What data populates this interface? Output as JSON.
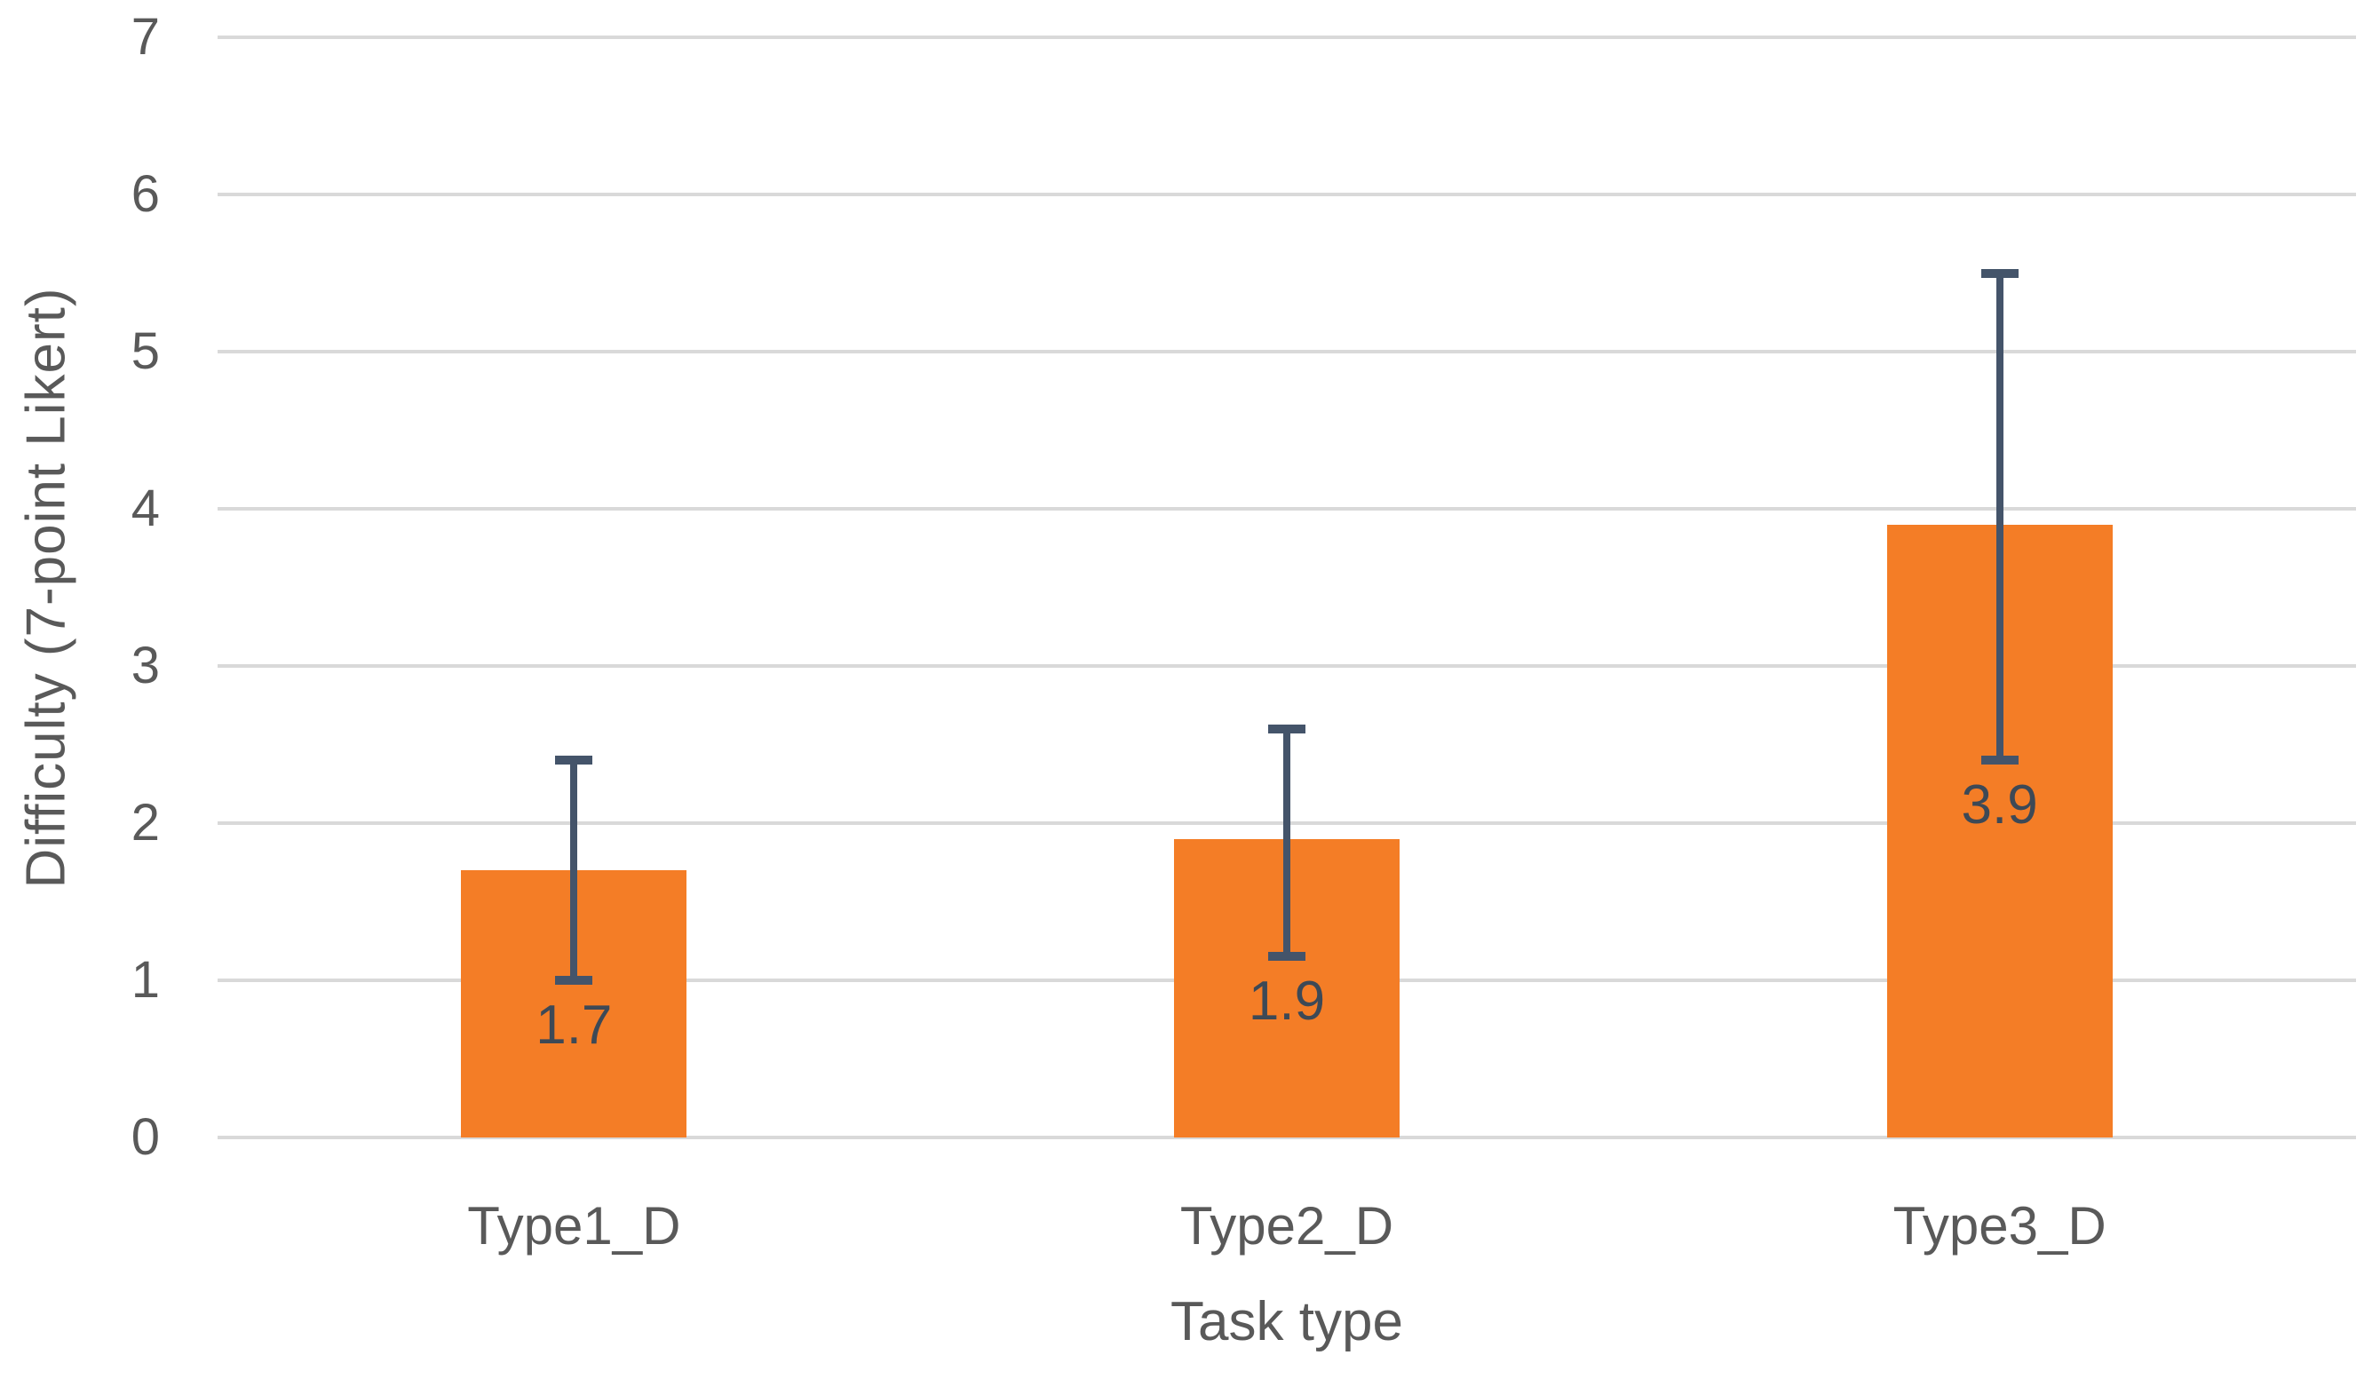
{
  "chart_data": {
    "type": "bar",
    "title": "",
    "categories": [
      "Type1_D",
      "Type2_D",
      "Type3_D"
    ],
    "values": [
      1.7,
      1.9,
      3.9
    ],
    "data_labels": [
      "1.7",
      "1.9",
      "3.9"
    ],
    "error_bars": [
      {
        "upper": 2.4,
        "lower": 1.0
      },
      {
        "upper": 2.6,
        "lower": 1.15
      },
      {
        "upper": 5.5,
        "lower": 2.4
      }
    ],
    "xlabel": "Task type",
    "ylabel": "Difficulty (7-point Likert)",
    "ylim": [
      0,
      7
    ],
    "yticks": [
      7,
      6,
      5,
      4,
      3,
      2,
      1,
      0
    ],
    "ytick_labels": [
      "7",
      "6",
      "5",
      "4",
      "3",
      "2",
      "1",
      "0"
    ],
    "grid": true,
    "legend": "none",
    "style": {
      "bar_color": "#F47D26",
      "error_bar_color": "#44546A",
      "data_label_color": "#3D4956",
      "axis_text_color": "#595959",
      "gridline_color": "#D9D9D9",
      "background_color": "#FFFFFF"
    }
  }
}
